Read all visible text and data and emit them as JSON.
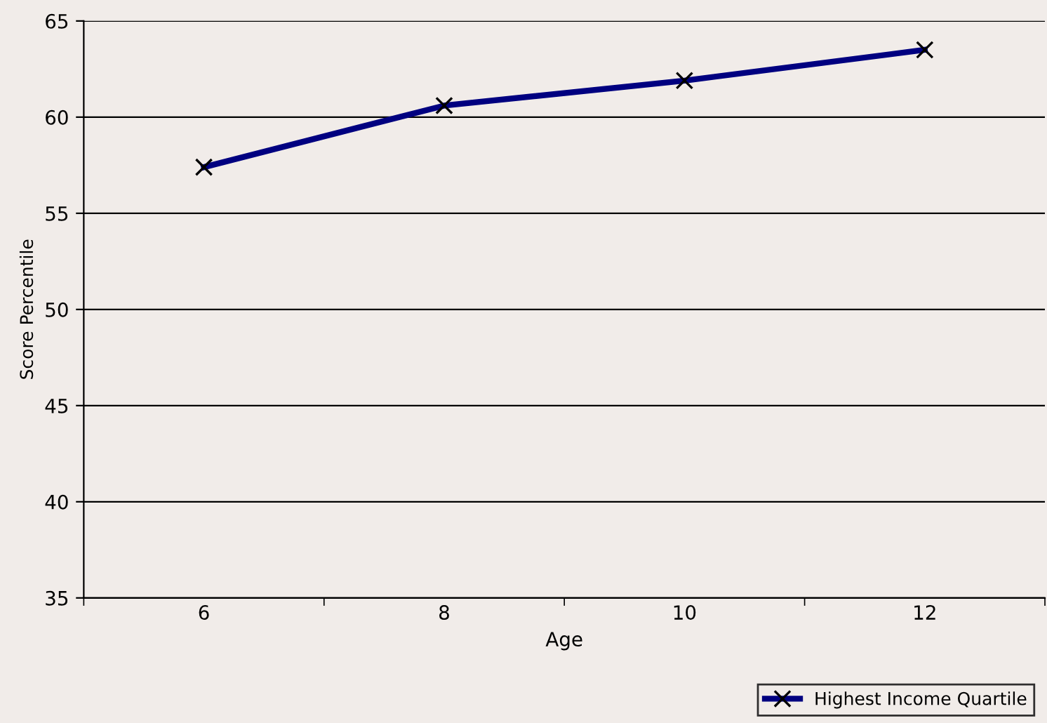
{
  "chart_data": {
    "type": "line",
    "xlabel": "Age",
    "ylabel": "Score Percentile",
    "categories": [
      "6",
      "8",
      "10",
      "12"
    ],
    "series": [
      {
        "name": "Highest Income Quartile",
        "color": "#000080",
        "values": [
          57.4,
          60.6,
          61.9,
          63.5
        ]
      }
    ],
    "ylim": [
      35,
      65
    ],
    "yticks": [
      35,
      40,
      45,
      50,
      55,
      60,
      65
    ],
    "grid": "y",
    "legend": "bottom right",
    "marker": "cross",
    "line_style": "solid"
  }
}
